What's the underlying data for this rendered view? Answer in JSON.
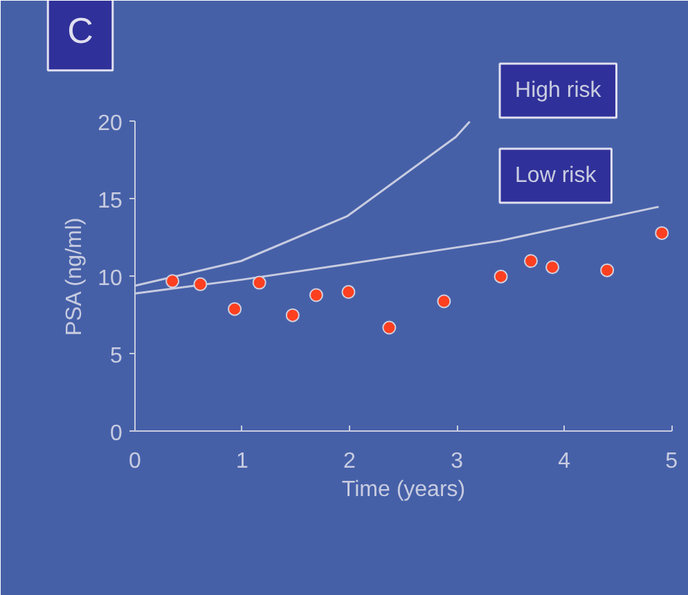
{
  "chart_data": {
    "type": "scatter",
    "xlabel": "Time (years)",
    "ylabel": "PSA (ng/ml)",
    "annotations": [
      "C"
    ],
    "xlim": [
      0,
      5
    ],
    "xticks": [
      0,
      1,
      2,
      3,
      4,
      5
    ],
    "ylim": [
      0,
      20
    ],
    "yticks": [
      0,
      5,
      10,
      15,
      20
    ],
    "grid": false,
    "legend": "top right",
    "series": [
      {
        "name": "High risk",
        "type": "line",
        "color": "#c8cce0",
        "x": [
          0,
          0.99,
          1.98,
          2.99,
          3.12
        ],
        "values": [
          9.4,
          11.0,
          13.9,
          19.0,
          20
        ]
      },
      {
        "name": "Low risk",
        "type": "line",
        "color": "#c8cce0",
        "x": [
          0,
          1,
          1.98,
          3.4,
          4.88
        ],
        "values": [
          8.9,
          9.8,
          10.8,
          12.3,
          14.5
        ]
      },
      {
        "color": "#ff4020",
        "marker": "circle",
        "x": [
          0.35,
          0.61,
          0.93,
          1.16,
          1.47,
          1.69,
          1.99,
          2.37,
          2.88,
          3.41,
          3.69,
          3.89,
          4.4,
          4.91
        ],
        "values": [
          9.7,
          9.5,
          7.9,
          9.6,
          7.5,
          8.8,
          9.0,
          6.7,
          8.4,
          10.0,
          11.0,
          10.6,
          10.4,
          12.8
        ]
      }
    ]
  }
}
